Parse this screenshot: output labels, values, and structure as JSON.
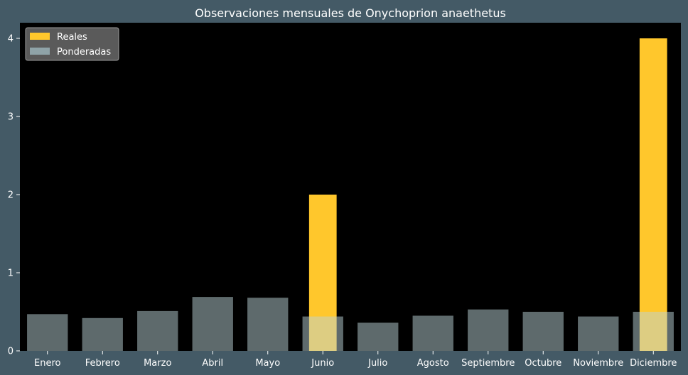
{
  "chart_data": {
    "type": "bar",
    "title": "Observaciones mensuales de Onychoprion anaethetus",
    "xlabel": "",
    "ylabel": "",
    "categories": [
      "Enero",
      "Febrero",
      "Marzo",
      "Abril",
      "Mayo",
      "Junio",
      "Julio",
      "Agosto",
      "Septiembre",
      "Octubre",
      "Noviembre",
      "Diciembre"
    ],
    "series": [
      {
        "name": "Reales",
        "color": "#ffc72c",
        "values": [
          0,
          0,
          0,
          0,
          0,
          2,
          0,
          0,
          0,
          0,
          0,
          4
        ]
      },
      {
        "name": "Ponderadas",
        "color": "#bbd3d8",
        "values": [
          0.47,
          0.42,
          0.51,
          0.69,
          0.68,
          0.44,
          0.36,
          0.45,
          0.53,
          0.5,
          0.44,
          0.5
        ]
      }
    ],
    "ylim": [
      0,
      4.2
    ],
    "yticks": [
      0,
      1,
      2,
      3,
      4
    ],
    "grid": false,
    "legend_position": "top-left",
    "colors": {
      "figure_background": "#445a66",
      "plot_background": "#000000",
      "text": "#ffffff"
    }
  }
}
